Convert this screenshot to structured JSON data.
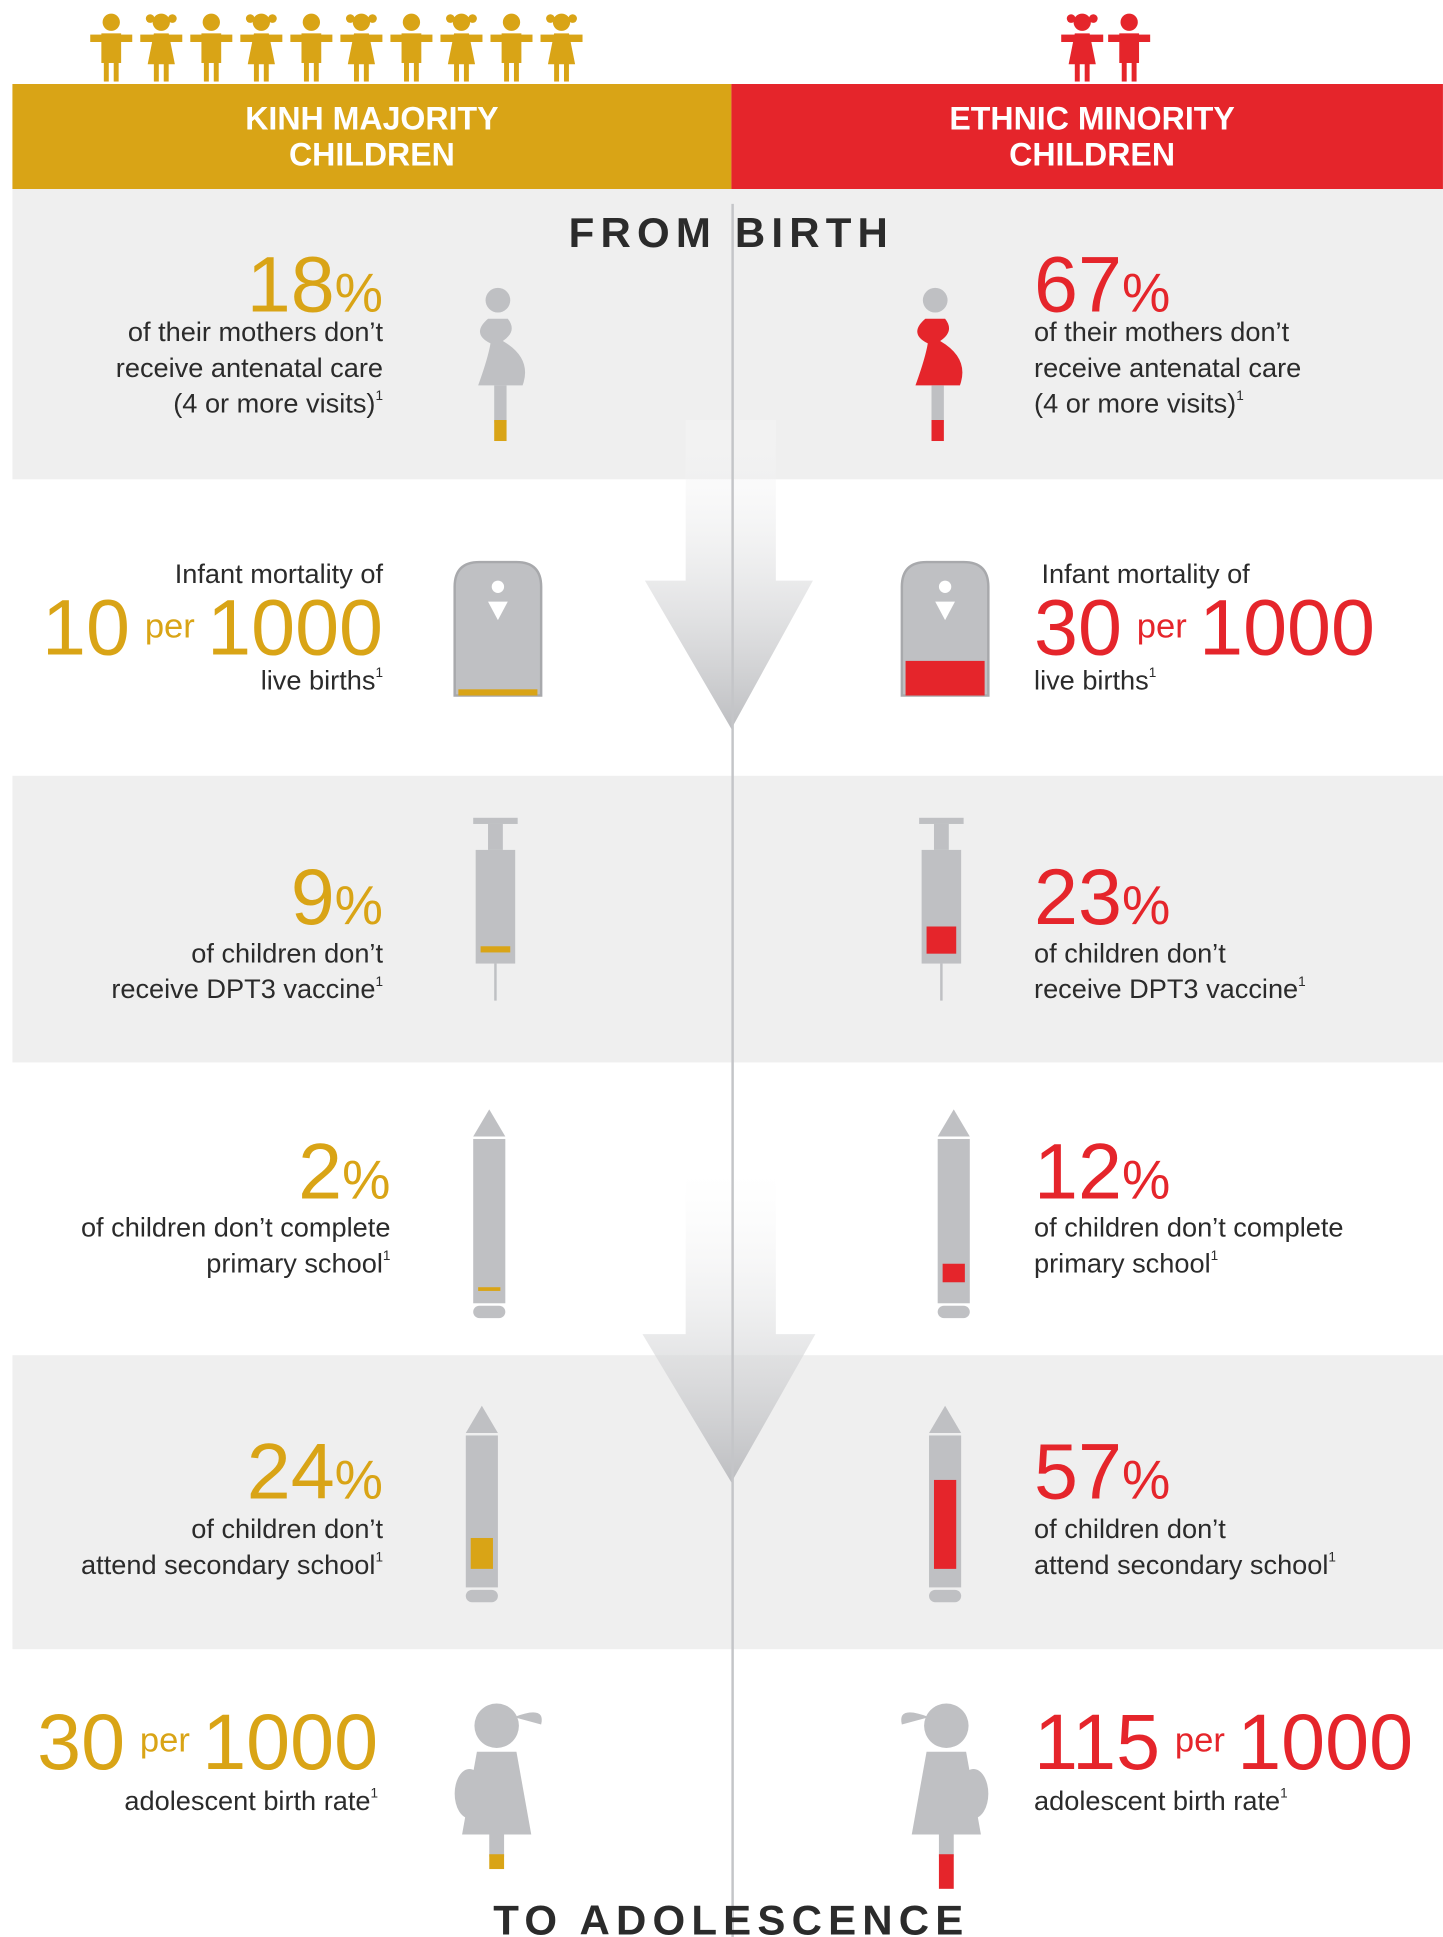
{
  "header": {
    "left": [
      "KINH MAJORITY",
      "CHILDREN"
    ],
    "right": [
      "ETHNIC MINORITY",
      "CHILDREN"
    ]
  },
  "top_label": "FROM BIRTH",
  "bottom_label": "TO ADOLESCENCE",
  "rows": [
    {
      "left": {
        "figure": "18",
        "unit": "%",
        "lines": [
          "of their mothers don’t",
          "receive antenatal care",
          "(4 or more visits)"
        ],
        "note": "1"
      },
      "right": {
        "figure": "67",
        "unit": "%",
        "lines": [
          "of their mothers don’t",
          "receive antenatal care",
          "(4 or more visits)"
        ],
        "note": "1"
      }
    },
    {
      "left": {
        "lead": "Infant mortality of",
        "figure": "10",
        "per": "per",
        "base": "1000",
        "lines": [
          "live births"
        ],
        "note": "1"
      },
      "right": {
        "lead": "Infant mortality of",
        "figure": "30",
        "per": "per",
        "base": "1000",
        "lines": [
          "live births"
        ],
        "note": "1"
      }
    },
    {
      "left": {
        "figure": "9",
        "unit": "%",
        "lines": [
          "of children don’t",
          "receive DPT3 vaccine"
        ],
        "note": "1"
      },
      "right": {
        "figure": "23",
        "unit": "%",
        "lines": [
          "of children don’t",
          "receive DPT3 vaccine"
        ],
        "note": "1"
      }
    },
    {
      "left": {
        "figure": "2",
        "unit": "%",
        "lines": [
          "of children don’t complete",
          "primary school"
        ],
        "note": "1"
      },
      "right": {
        "figure": "12",
        "unit": "%",
        "lines": [
          "of children don’t complete",
          "primary school"
        ],
        "note": "1"
      }
    },
    {
      "left": {
        "figure": "24",
        "unit": "%",
        "lines": [
          "of children don’t",
          "attend secondary school"
        ],
        "note": "1"
      },
      "right": {
        "figure": "57",
        "unit": "%",
        "lines": [
          "of children don’t",
          "attend secondary school"
        ],
        "note": "1"
      }
    },
    {
      "left": {
        "figure": "30",
        "per": "per",
        "base": "1000",
        "lines": [
          "adolescent birth rate"
        ],
        "note": "1"
      },
      "right": {
        "figure": "115",
        "per": "per",
        "base": "1000",
        "lines": [
          "adolescent birth rate"
        ],
        "note": "1"
      }
    }
  ]
}
